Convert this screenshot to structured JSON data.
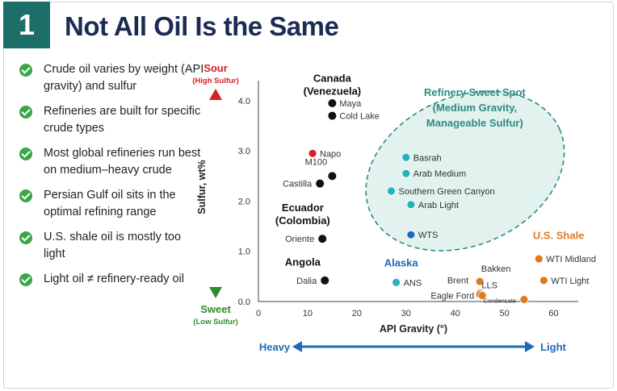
{
  "header": {
    "number": "1",
    "title": "Not All Oil Is the Same"
  },
  "bullets": [
    "Crude oil varies by weight (API gravity) and sulfur",
    "Refineries are built for specific crude types",
    "Most global refineries run best on medium–heavy crude",
    "Persian Gulf oil sits in the optimal refining range",
    "U.S. shale oil is mostly too light",
    "Light oil ≠ refinery-ready oil"
  ],
  "colors": {
    "red": "#d62023",
    "teal": "#27b0bd",
    "blue": "#1f6ab7",
    "orange": "#e07a22",
    "black": "#111111",
    "navy": "#1c2b52",
    "zone_fill": "#e2f2ee",
    "zone_stroke": "#2f8a82"
  },
  "chart_data": {
    "type": "scatter",
    "xlabel": "API Gravity (°)",
    "ylabel": "Sulfur, wt%",
    "xlim": [
      0,
      65
    ],
    "ylim": [
      0,
      4.4
    ],
    "xticks": [
      0,
      10,
      20,
      30,
      40,
      50,
      60
    ],
    "yticks": [
      0.0,
      1.0,
      2.0,
      3.0,
      4.0
    ],
    "ytick_labels": [
      "0.0",
      "1.0",
      "2.0",
      "3.0",
      "4.0"
    ],
    "sulfur_top": {
      "label": "Sour",
      "sub": "(High Sulfur)"
    },
    "sulfur_bottom": {
      "label": "Sweet",
      "sub": "(Low Sulfur)"
    },
    "gravity_left": "Heavy",
    "gravity_right": "Light",
    "groups": [
      {
        "label": "Canada\n(Venezuela)",
        "color": "black",
        "x": 15,
        "y": 4.28
      },
      {
        "label": "Ecuador\n(Colombia)",
        "color": "black",
        "x": 9,
        "y": 1.7
      },
      {
        "label": "Angola",
        "color": "black",
        "x": 9,
        "y": 0.62
      },
      {
        "label": "Alaska",
        "color": "blue",
        "x": 29,
        "y": 0.6
      },
      {
        "label": "U.S. Shale",
        "color": "orange",
        "x": 61,
        "y": 1.15
      }
    ],
    "zone": {
      "label": "Refinery Sweet Spot\n(Medium Gravity,\nManageable Sulfur)",
      "x_center": 42,
      "y_center": 2.6
    },
    "series": [
      {
        "name": "Maya",
        "x": 15,
        "y": 3.95,
        "color": "black",
        "label_side": "right"
      },
      {
        "name": "Cold Lake",
        "x": 15,
        "y": 3.7,
        "color": "black",
        "label_side": "right"
      },
      {
        "name": "Napo",
        "x": 11,
        "y": 2.95,
        "color": "red",
        "label_side": "right"
      },
      {
        "name": "M100",
        "x": 15,
        "y": 2.5,
        "color": "black",
        "label_side": "above-left"
      },
      {
        "name": "Castilla",
        "x": 12.5,
        "y": 2.35,
        "color": "black",
        "label_side": "left"
      },
      {
        "name": "Oriente",
        "x": 13,
        "y": 1.25,
        "color": "black",
        "label_side": "left"
      },
      {
        "name": "Dalia",
        "x": 13.5,
        "y": 0.42,
        "color": "black",
        "label_side": "left"
      },
      {
        "name": "Basrah",
        "x": 30,
        "y": 2.87,
        "color": "teal",
        "label_side": "right"
      },
      {
        "name": "Arab Medium",
        "x": 30,
        "y": 2.55,
        "color": "teal",
        "label_side": "right"
      },
      {
        "name": "Southern Green Canyon",
        "x": 27,
        "y": 2.2,
        "color": "teal",
        "label_side": "right"
      },
      {
        "name": "Arab Light",
        "x": 31,
        "y": 1.93,
        "color": "teal",
        "label_side": "right"
      },
      {
        "name": "WTS",
        "x": 31,
        "y": 1.33,
        "color": "blue",
        "label_side": "right"
      },
      {
        "name": "ANS",
        "x": 28,
        "y": 0.38,
        "color": "teal",
        "label_side": "right"
      },
      {
        "name": "Bakken",
        "x": 45,
        "y": 0.4,
        "color": "orange",
        "label_side": "above"
      },
      {
        "name": "LLS",
        "x": 45,
        "y": 0.17,
        "color": "orange",
        "label_side": "above-right"
      },
      {
        "name": "Brent",
        "x": 45,
        "y": 0.14,
        "color": "orange",
        "label_side": "left-high"
      },
      {
        "name": "Eagle Ford",
        "x": 45.5,
        "y": 0.12,
        "color": "orange",
        "label_side": "left"
      },
      {
        "name": "WTI Midland",
        "x": 57,
        "y": 0.85,
        "color": "orange",
        "label_side": "right"
      },
      {
        "name": "WTI Light",
        "x": 58,
        "y": 0.42,
        "color": "orange",
        "label_side": "right"
      },
      {
        "name": "Condensate",
        "x": 54,
        "y": 0.04,
        "color": "orange",
        "label_side": "left"
      }
    ]
  }
}
